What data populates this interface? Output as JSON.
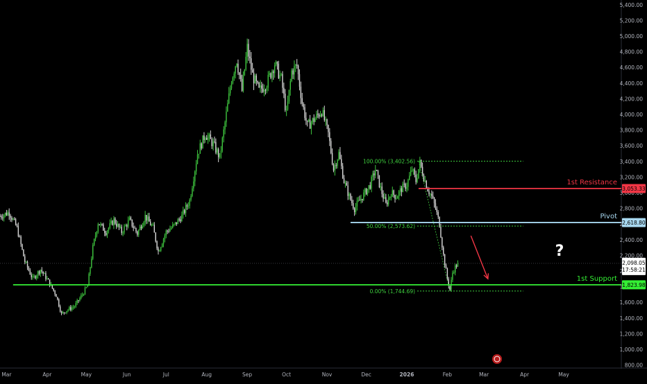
{
  "chart_data": {
    "type": "candlestick",
    "title": "",
    "xlabel": "",
    "ylabel": "",
    "ylim": [
      770,
      5460
    ],
    "y_ticks": [
      800,
      1000,
      1200,
      1400,
      1600,
      1800,
      2000,
      2200,
      2400,
      2600,
      2800,
      3000,
      3200,
      3400,
      3600,
      3800,
      4000,
      4200,
      4400,
      4600,
      4800,
      5000,
      5200,
      5400
    ],
    "y_tick_labels": [
      "800.00",
      "1,000.00",
      "1,200.00",
      "1,400.00",
      "1,600.00",
      "1,800.00",
      "2,000.00",
      "2,200.00",
      "2,400.00",
      "2,600.00",
      "2,800.00",
      "3,000.00",
      "3,200.00",
      "3,400.00",
      "3,600.00",
      "3,800.00",
      "4,000.00",
      "4,200.00",
      "4,400.00",
      "4,600.00",
      "4,800.00",
      "5,000.00",
      "5,200.00",
      "5,400.00"
    ],
    "x_range_days": [
      -5,
      470
    ],
    "x_ticks": [
      {
        "day": 0,
        "label": "Mar"
      },
      {
        "day": 31,
        "label": "Apr"
      },
      {
        "day": 61,
        "label": "May"
      },
      {
        "day": 92,
        "label": "Jun"
      },
      {
        "day": 122,
        "label": "Jul"
      },
      {
        "day": 153,
        "label": "Aug"
      },
      {
        "day": 184,
        "label": "Sep"
      },
      {
        "day": 214,
        "label": "Oct"
      },
      {
        "day": 245,
        "label": "Nov"
      },
      {
        "day": 275,
        "label": "Dec"
      },
      {
        "day": 306,
        "label": "2026",
        "bold": true
      },
      {
        "day": 337,
        "label": "Feb"
      },
      {
        "day": 365,
        "label": "Mar"
      },
      {
        "day": 396,
        "label": "Apr"
      },
      {
        "day": 426,
        "label": "May"
      }
    ],
    "price_path": [
      {
        "day": -5,
        "price": 2700
      },
      {
        "day": 2,
        "price": 2750
      },
      {
        "day": 8,
        "price": 2550
      },
      {
        "day": 14,
        "price": 2120
      },
      {
        "day": 20,
        "price": 1900
      },
      {
        "day": 26,
        "price": 2020
      },
      {
        "day": 32,
        "price": 1870
      },
      {
        "day": 38,
        "price": 1690
      },
      {
        "day": 42,
        "price": 1450
      },
      {
        "day": 46,
        "price": 1500
      },
      {
        "day": 52,
        "price": 1550
      },
      {
        "day": 58,
        "price": 1700
      },
      {
        "day": 62,
        "price": 1810
      },
      {
        "day": 66,
        "price": 2300
      },
      {
        "day": 70,
        "price": 2620
      },
      {
        "day": 76,
        "price": 2500
      },
      {
        "day": 82,
        "price": 2650
      },
      {
        "day": 88,
        "price": 2500
      },
      {
        "day": 94,
        "price": 2650
      },
      {
        "day": 100,
        "price": 2480
      },
      {
        "day": 106,
        "price": 2700
      },
      {
        "day": 112,
        "price": 2550
      },
      {
        "day": 116,
        "price": 2250
      },
      {
        "day": 122,
        "price": 2500
      },
      {
        "day": 128,
        "price": 2580
      },
      {
        "day": 134,
        "price": 2700
      },
      {
        "day": 140,
        "price": 2900
      },
      {
        "day": 146,
        "price": 3500
      },
      {
        "day": 152,
        "price": 3750
      },
      {
        "day": 158,
        "price": 3620
      },
      {
        "day": 163,
        "price": 3450
      },
      {
        "day": 168,
        "price": 4000
      },
      {
        "day": 172,
        "price": 4450
      },
      {
        "day": 176,
        "price": 4700
      },
      {
        "day": 180,
        "price": 4300
      },
      {
        "day": 184,
        "price": 4850
      },
      {
        "day": 188,
        "price": 4500
      },
      {
        "day": 193,
        "price": 4300
      },
      {
        "day": 199,
        "price": 4400
      },
      {
        "day": 205,
        "price": 4650
      },
      {
        "day": 210,
        "price": 4450
      },
      {
        "day": 214,
        "price": 4000
      },
      {
        "day": 218,
        "price": 4550
      },
      {
        "day": 222,
        "price": 4620
      },
      {
        "day": 226,
        "price": 4150
      },
      {
        "day": 230,
        "price": 3850
      },
      {
        "day": 236,
        "price": 3950
      },
      {
        "day": 241,
        "price": 4050
      },
      {
        "day": 246,
        "price": 3750
      },
      {
        "day": 250,
        "price": 3300
      },
      {
        "day": 254,
        "price": 3500
      },
      {
        "day": 258,
        "price": 3150
      },
      {
        "day": 262,
        "price": 2950
      },
      {
        "day": 266,
        "price": 2800
      },
      {
        "day": 270,
        "price": 2900
      },
      {
        "day": 274,
        "price": 3000
      },
      {
        "day": 278,
        "price": 3100
      },
      {
        "day": 282,
        "price": 3300
      },
      {
        "day": 286,
        "price": 3050
      },
      {
        "day": 290,
        "price": 2850
      },
      {
        "day": 294,
        "price": 3000
      },
      {
        "day": 298,
        "price": 2950
      },
      {
        "day": 302,
        "price": 3050
      },
      {
        "day": 306,
        "price": 3100
      },
      {
        "day": 310,
        "price": 3300
      },
      {
        "day": 313,
        "price": 3150
      },
      {
        "day": 316,
        "price": 3380
      },
      {
        "day": 319,
        "price": 3200
      },
      {
        "day": 322,
        "price": 3050
      },
      {
        "day": 325,
        "price": 2950
      },
      {
        "day": 328,
        "price": 2800
      },
      {
        "day": 331,
        "price": 2600
      },
      {
        "day": 334,
        "price": 2200
      },
      {
        "day": 337,
        "price": 1900
      },
      {
        "day": 339,
        "price": 1760
      },
      {
        "day": 341,
        "price": 1980
      },
      {
        "day": 343,
        "price": 2050
      },
      {
        "day": 345,
        "price": 2098
      }
    ],
    "current_price": {
      "value": 2098.05,
      "label": "2,098.05",
      "countdown": "17:58:21"
    },
    "levels": [
      {
        "name": "1st Resistance",
        "value": 3053.33,
        "label": "3,053.33",
        "color": "#f23645",
        "start_day": 315
      },
      {
        "name": "Pivot",
        "value": 2618.8,
        "label": "2,618.80",
        "color": "#a8d8f0",
        "start_day": 263
      },
      {
        "name": "1st Support",
        "value": 1823.98,
        "label": "1,823.98",
        "color": "#34f034",
        "start_day": 5
      }
    ],
    "fibonacci": {
      "color": "#3fd23f",
      "start_day": 314,
      "end_day": 395,
      "levels": [
        {
          "label": "100.00% (3,402.56)",
          "value": 3402.56
        },
        {
          "label": "50.00% (2,573.62)",
          "value": 2573.62
        },
        {
          "label": "0.00% (1,744.69)",
          "value": 1744.69
        }
      ]
    },
    "annotation": {
      "text": "?",
      "color": "#ffffff"
    },
    "arrow": {
      "color": "#f23645",
      "from": {
        "day": 355,
        "price": 2450
      },
      "to": {
        "day": 368,
        "price": 1900
      }
    },
    "colors": {
      "up": "#3ec43e",
      "down": "#d9d9d9",
      "background": "#000000",
      "axis_text": "#b2b5be"
    },
    "grid": false,
    "legend": "none"
  }
}
